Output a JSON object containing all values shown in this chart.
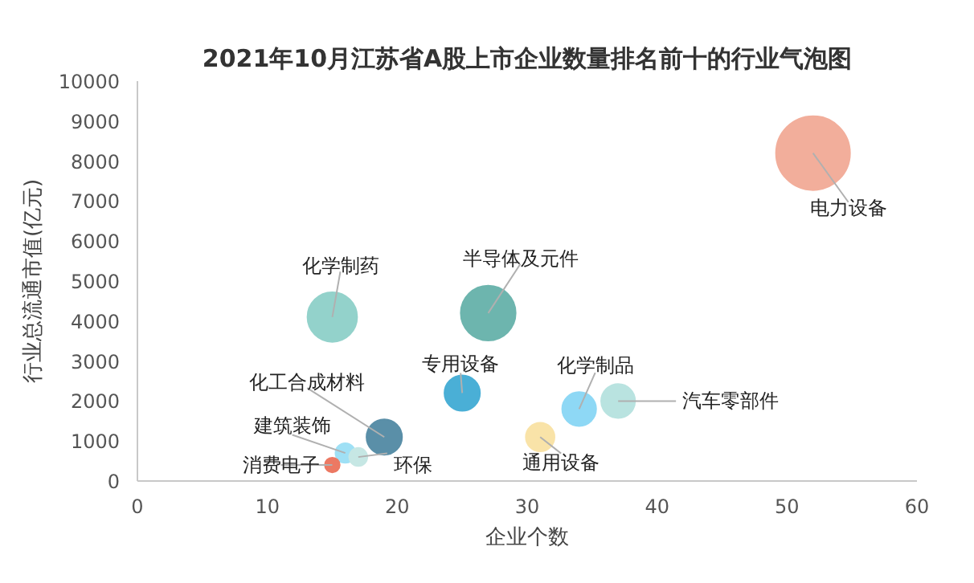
{
  "chart_data": {
    "type": "bubble",
    "title": "2021年10月江苏省A股上市企业数量排名前十的行业气泡图",
    "xlabel": "企业个数",
    "ylabel": "行业总流通市值(亿元)",
    "x": [
      52,
      27,
      15,
      25,
      34,
      37,
      31,
      19,
      16,
      17,
      15
    ],
    "values": [
      8200,
      4200,
      4100,
      2200,
      1800,
      2000,
      1100,
      1100,
      700,
      600,
      400
    ],
    "sizes": [
      1,
      0.55,
      0.45,
      0.23,
      0.21,
      0.21,
      0.15,
      0.23,
      0.07,
      0.06,
      0.04
    ],
    "colors": [
      "#f2ae9b",
      "#6db5ae",
      "#93d2cb",
      "#4aafd6",
      "#8ed8f5",
      "#b9e3e0",
      "#f9e3a8",
      "#5a8fa8",
      "#9fe0f5",
      "#c6e7e4",
      "#ec7963"
    ],
    "xlim": [
      0,
      60
    ],
    "xticks": [
      0,
      10,
      20,
      30,
      40,
      50,
      60
    ],
    "ylim": [
      0,
      10000
    ],
    "yticks": [
      0,
      1000,
      2000,
      3000,
      4000,
      5000,
      6000,
      7000,
      8000,
      9000,
      10000
    ],
    "grid": false,
    "annotations": [
      {
        "text": "电力设备",
        "x": 52,
        "y": 8200
      },
      {
        "text": "半导体及元件",
        "x": 27,
        "y": 4200
      },
      {
        "text": "化学制药",
        "x": 15,
        "y": 4100
      },
      {
        "text": "专用设备",
        "x": 25,
        "y": 2200
      },
      {
        "text": "化学制品",
        "x": 34,
        "y": 1800
      },
      {
        "text": "汽车零部件",
        "x": 37,
        "y": 2000
      },
      {
        "text": "通用设备",
        "x": 31,
        "y": 1100
      },
      {
        "text": "化工合成材料",
        "x": 19,
        "y": 1100
      },
      {
        "text": "建筑装饰",
        "x": 16,
        "y": 700
      },
      {
        "text": "环保",
        "x": 17,
        "y": 600
      },
      {
        "text": "消费电子",
        "x": 15,
        "y": 400
      }
    ]
  }
}
